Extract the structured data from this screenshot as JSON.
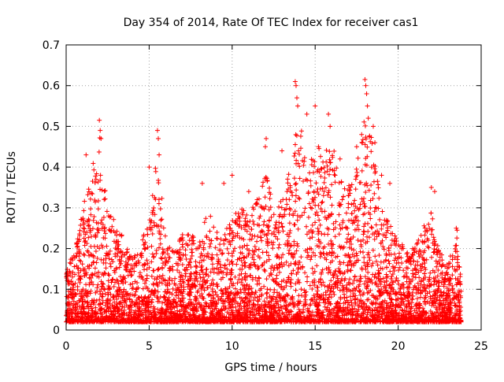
{
  "chart_data": {
    "type": "scatter",
    "title": "Day 354 of 2014, Rate Of TEC Index for receiver cas1",
    "xlabel": "GPS time / hours",
    "ylabel": "ROTI / TECUs",
    "xlim": [
      0,
      25
    ],
    "ylim": [
      0,
      0.7
    ],
    "grid": true,
    "marker": "plus",
    "colors": {
      "series": "#ff0000",
      "grid": "#a0a0a0",
      "axis": "#000000"
    },
    "x_ticks": [
      0,
      5,
      10,
      15,
      20,
      25
    ],
    "y_ticks": [
      0,
      0.1,
      0.2,
      0.3,
      0.4,
      0.5,
      0.6,
      0.7
    ],
    "x_tick_labels": [
      "0",
      "5",
      "10",
      "15",
      "20",
      "25"
    ],
    "y_tick_labels": [
      "0",
      "0.1",
      "0.2",
      "0.3",
      "0.4",
      "0.5",
      "0.6",
      "0.7"
    ],
    "series": [
      {
        "name": "cas1",
        "x_range_hours": [
          0,
          23.8
        ],
        "noise_floor": 0.02,
        "envelope": [
          [
            0.0,
            0.15
          ],
          [
            0.5,
            0.2
          ],
          [
            1.0,
            0.3
          ],
          [
            1.5,
            0.38
          ],
          [
            2.0,
            0.5
          ],
          [
            2.5,
            0.3
          ],
          [
            3.0,
            0.28
          ],
          [
            3.5,
            0.22
          ],
          [
            4.0,
            0.18
          ],
          [
            4.5,
            0.2
          ],
          [
            5.0,
            0.3
          ],
          [
            5.5,
            0.45
          ],
          [
            6.0,
            0.22
          ],
          [
            6.5,
            0.2
          ],
          [
            7.0,
            0.25
          ],
          [
            7.5,
            0.24
          ],
          [
            8.0,
            0.22
          ],
          [
            8.5,
            0.3
          ],
          [
            9.0,
            0.25
          ],
          [
            9.5,
            0.24
          ],
          [
            10.0,
            0.28
          ],
          [
            10.5,
            0.3
          ],
          [
            11.0,
            0.3
          ],
          [
            11.5,
            0.32
          ],
          [
            12.0,
            0.4
          ],
          [
            12.5,
            0.3
          ],
          [
            13.0,
            0.33
          ],
          [
            13.5,
            0.4
          ],
          [
            14.0,
            0.55
          ],
          [
            14.5,
            0.4
          ],
          [
            15.0,
            0.45
          ],
          [
            15.5,
            0.45
          ],
          [
            16.0,
            0.5
          ],
          [
            16.5,
            0.38
          ],
          [
            17.0,
            0.35
          ],
          [
            17.5,
            0.42
          ],
          [
            18.0,
            0.55
          ],
          [
            18.5,
            0.45
          ],
          [
            19.0,
            0.3
          ],
          [
            19.5,
            0.26
          ],
          [
            20.0,
            0.22
          ],
          [
            20.5,
            0.2
          ],
          [
            21.0,
            0.2
          ],
          [
            21.5,
            0.25
          ],
          [
            22.0,
            0.32
          ],
          [
            22.5,
            0.2
          ],
          [
            23.0,
            0.16
          ],
          [
            23.5,
            0.25
          ],
          [
            23.8,
            0.12
          ]
        ],
        "peaks": [
          [
            1.2,
            0.43
          ],
          [
            1.8,
            0.37
          ],
          [
            2.0,
            0.515
          ],
          [
            2.05,
            0.49
          ],
          [
            2.1,
            0.47
          ],
          [
            5.0,
            0.4
          ],
          [
            5.5,
            0.49
          ],
          [
            5.55,
            0.47
          ],
          [
            5.6,
            0.43
          ],
          [
            8.2,
            0.36
          ],
          [
            9.5,
            0.36
          ],
          [
            10.0,
            0.38
          ],
          [
            11.0,
            0.34
          ],
          [
            12.0,
            0.45
          ],
          [
            12.05,
            0.47
          ],
          [
            13.0,
            0.44
          ],
          [
            13.5,
            0.35
          ],
          [
            13.8,
            0.61
          ],
          [
            13.85,
            0.6
          ],
          [
            13.9,
            0.57
          ],
          [
            13.95,
            0.55
          ],
          [
            14.0,
            0.44
          ],
          [
            14.5,
            0.53
          ],
          [
            15.0,
            0.55
          ],
          [
            15.2,
            0.45
          ],
          [
            15.8,
            0.53
          ],
          [
            15.9,
            0.5
          ],
          [
            16.2,
            0.38
          ],
          [
            16.5,
            0.42
          ],
          [
            17.0,
            0.33
          ],
          [
            17.5,
            0.45
          ],
          [
            17.8,
            0.48
          ],
          [
            18.0,
            0.615
          ],
          [
            18.05,
            0.6
          ],
          [
            18.1,
            0.58
          ],
          [
            18.15,
            0.55
          ],
          [
            18.2,
            0.52
          ],
          [
            18.5,
            0.5
          ],
          [
            18.6,
            0.46
          ],
          [
            19.0,
            0.38
          ],
          [
            19.5,
            0.36
          ],
          [
            22.0,
            0.35
          ],
          [
            22.2,
            0.34
          ],
          [
            23.5,
            0.25
          ],
          [
            23.55,
            0.245
          ]
        ],
        "sample_count": 5200
      }
    ]
  }
}
